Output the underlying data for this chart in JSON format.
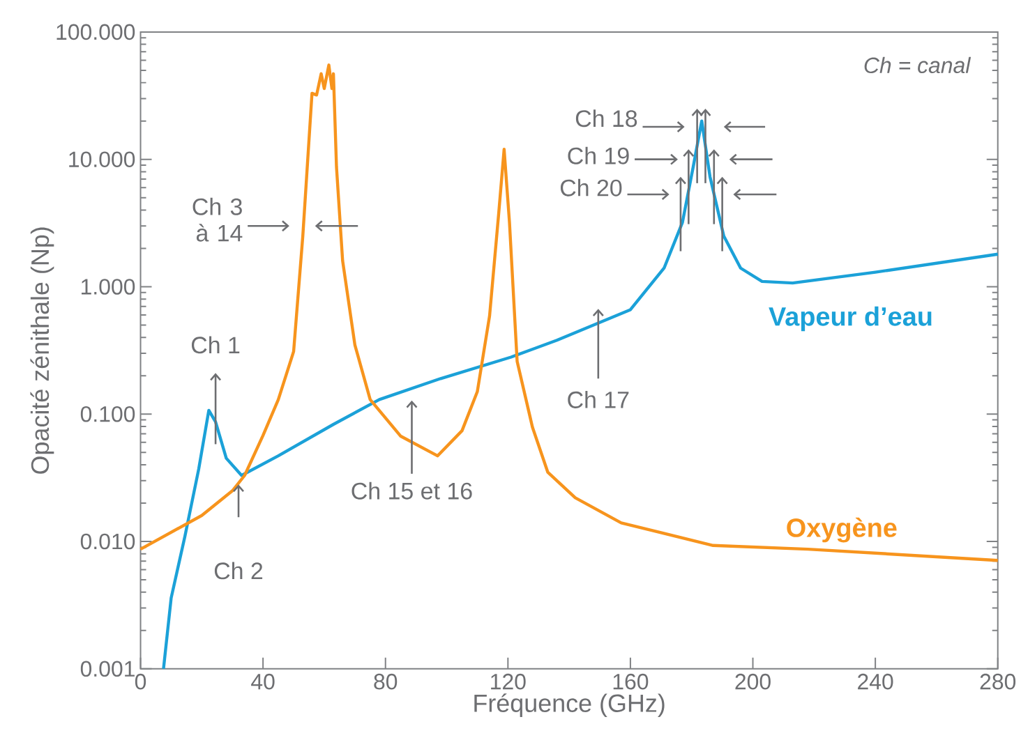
{
  "chart_data": {
    "type": "line",
    "xlabel": "Fréquence (GHz)",
    "ylabel": "Opacité zénithale (Np)",
    "xlim": [
      0,
      280
    ],
    "xticks": [
      0,
      40,
      80,
      120,
      160,
      200,
      240,
      280
    ],
    "ylim": [
      0.001,
      100
    ],
    "yticks": [
      {
        "value": 0.001,
        "label": "0.001"
      },
      {
        "value": 0.01,
        "label": "0.010"
      },
      {
        "value": 0.1,
        "label": "0.100"
      },
      {
        "value": 1,
        "label": "1.000"
      },
      {
        "value": 10,
        "label": "10.000"
      },
      {
        "value": 100,
        "label": "100.000"
      }
    ],
    "log": "y",
    "grid": false,
    "legend": false,
    "marker": "none",
    "line_style": "solid",
    "series": [
      {
        "name": "Vapeur d’eau",
        "color": "#1ba1d8",
        "x": [
          7.5,
          10,
          14.5,
          19,
          22.3,
          24.5,
          28,
          33,
          45,
          63,
          78,
          98,
          121,
          136,
          160,
          171,
          177,
          180.5,
          183.3,
          186,
          190.5,
          196,
          203,
          213,
          240,
          280
        ],
        "values": [
          0.001,
          0.0036,
          0.011,
          0.037,
          0.107,
          0.087,
          0.045,
          0.033,
          0.047,
          0.083,
          0.13,
          0.19,
          0.28,
          0.38,
          0.66,
          1.4,
          3.2,
          8.7,
          20,
          7.3,
          2.5,
          1.4,
          1.1,
          1.07,
          1.3,
          1.8
        ]
      },
      {
        "name": "Oxygène",
        "color": "#f7941d",
        "x": [
          0,
          20,
          30,
          34,
          40,
          45,
          50,
          53,
          56,
          57.5,
          59,
          60,
          61.5,
          62.5,
          63,
          64,
          66,
          70,
          75,
          85,
          97,
          105,
          110,
          114,
          117,
          118.75,
          120.5,
          123,
          128,
          133,
          142,
          157,
          187,
          218,
          280
        ],
        "values": [
          0.0087,
          0.016,
          0.025,
          0.033,
          0.068,
          0.13,
          0.31,
          2.5,
          33,
          32,
          47,
          36,
          55,
          36,
          47,
          8.7,
          1.6,
          0.35,
          0.13,
          0.067,
          0.047,
          0.074,
          0.15,
          0.59,
          3.8,
          12,
          3.2,
          0.26,
          0.079,
          0.035,
          0.022,
          0.014,
          0.0093,
          0.0087,
          0.0071
        ]
      }
    ],
    "annotations": [
      "Ch = canal",
      {
        "text": "Ch 1",
        "x": 24.5,
        "y": 0.087
      },
      "Ch 2",
      "Ch 3 à 14",
      "Ch 15 et 16",
      "Ch 17",
      "Ch 18",
      "Ch 19",
      "Ch 20"
    ]
  }
}
